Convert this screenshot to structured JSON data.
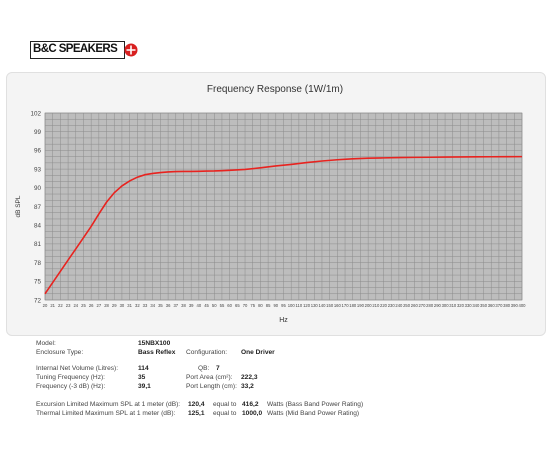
{
  "brand": {
    "logo_text": "B&C SPEAKERS"
  },
  "chart_data": {
    "type": "line",
    "title": "Frequency Response (1W/1m)",
    "xlabel": "Hz",
    "ylabel": "dB SPL",
    "ylim": [
      72,
      102
    ],
    "yticks": [
      72,
      75,
      78,
      81,
      84,
      87,
      90,
      93,
      96,
      99,
      102
    ],
    "xlim": [
      20,
      400
    ],
    "xticks": [
      20,
      21,
      22,
      23,
      24,
      25,
      26,
      27,
      28,
      29,
      30,
      31,
      32,
      33,
      34,
      35,
      36,
      37,
      38,
      39,
      40,
      45,
      50,
      55,
      60,
      65,
      70,
      75,
      80,
      85,
      90,
      95,
      100,
      110,
      120,
      130,
      140,
      150,
      160,
      170,
      180,
      190,
      200,
      210,
      220,
      230,
      240,
      250,
      260,
      270,
      280,
      290,
      300,
      310,
      320,
      330,
      340,
      350,
      360,
      370,
      380,
      390,
      400
    ],
    "grid": true,
    "line_color": "#e8231f",
    "series": [
      {
        "name": "",
        "x": [
          20,
          21,
          22,
          23,
          24,
          25,
          26,
          27,
          28,
          29,
          30,
          31,
          32,
          33,
          34,
          35,
          36,
          37,
          38,
          39,
          40,
          45,
          50,
          55,
          60,
          70,
          80,
          90,
          100,
          120,
          140,
          160,
          180,
          200,
          220,
          240,
          260,
          280,
          300,
          320,
          340,
          360,
          380,
          400
        ],
        "y": [
          73.0,
          74.8,
          76.6,
          78.4,
          80.2,
          82.0,
          83.8,
          85.8,
          87.7,
          89.2,
          90.3,
          91.1,
          91.7,
          92.1,
          92.3,
          92.45,
          92.55,
          92.6,
          92.62,
          92.63,
          92.65,
          92.68,
          92.7,
          92.75,
          92.8,
          92.95,
          93.2,
          93.5,
          93.75,
          94.05,
          94.3,
          94.5,
          94.65,
          94.75,
          94.8,
          94.85,
          94.88,
          94.9,
          94.93,
          94.95,
          94.97,
          94.98,
          94.99,
          95.0
        ]
      }
    ]
  },
  "specs": {
    "model_label": "Model:",
    "model_value": "15NBX100",
    "enclosure_label": "Enclosure Type:",
    "enclosure_value": "Bass Reflex",
    "configuration_label": "Configuration:",
    "configuration_value": "One Driver",
    "volume_label": "Internal Net Volume (Litres):",
    "volume_value": "114",
    "qb_label": "QB:",
    "qb_value": "7",
    "tuning_label": "Tuning Frequency (Hz):",
    "tuning_value": "35",
    "port_area_label": "Port Area (cm²):",
    "port_area_value": "222,3",
    "freq3db_label": "Frequency (-3 dB) (Hz):",
    "freq3db_value": "39,1",
    "port_length_label": "Port Length (cm):",
    "port_length_value": "33,2",
    "excursion_label": "Excursion Limited Maximum SPL at 1 meter (dB):",
    "excursion_value": "120,4",
    "excursion_equal": "equal to",
    "excursion_watts": "416,2",
    "excursion_note": "Watts (Bass Band Power Rating)",
    "thermal_label": "Thermal Limited Maximum SPL at 1 meter (dB):",
    "thermal_value": "125,1",
    "thermal_equal": "equal to",
    "thermal_watts": "1000,0",
    "thermal_note": "Watts (Mid Band Power Rating)"
  }
}
